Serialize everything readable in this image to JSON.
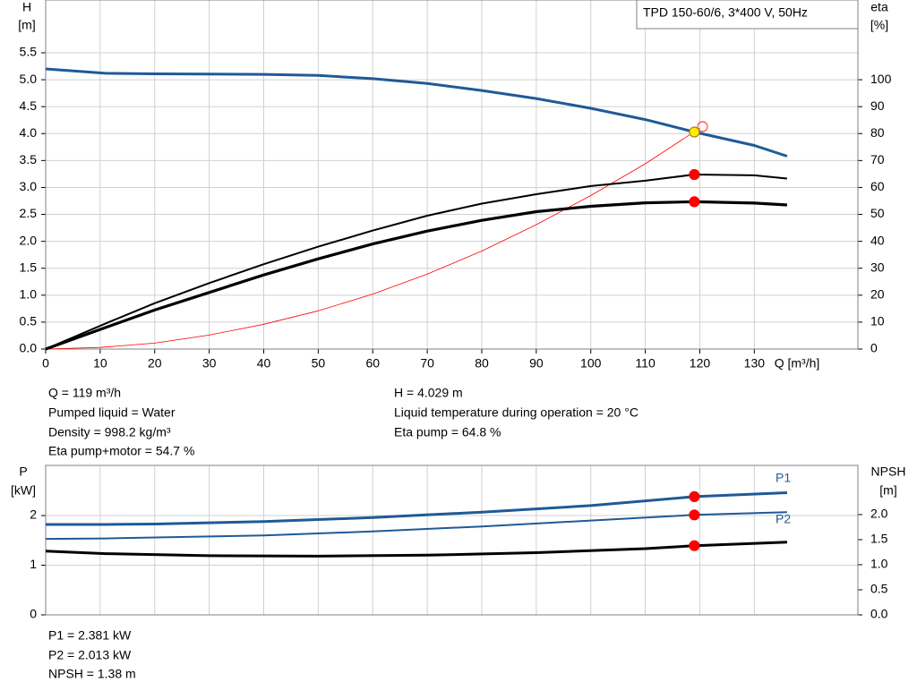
{
  "chart_data": [
    {
      "type": "line",
      "legend_text": "TPD 150-60/6, 3*400 V, 50Hz",
      "y_label": "H",
      "y_unit": "[m]",
      "y2_label": "eta",
      "y2_unit": "[%]",
      "x_label": "Q [m³/h]",
      "xlim": [
        0,
        149
      ],
      "xticks": [
        0,
        10,
        20,
        30,
        40,
        50,
        60,
        70,
        80,
        90,
        100,
        110,
        120,
        130
      ],
      "ylim": [
        0,
        6.48
      ],
      "yticks": [
        {
          "value": 0,
          "label": "0.0"
        },
        0.5,
        {
          "value": 1,
          "label": "1.0"
        },
        1.5,
        {
          "value": 2,
          "label": "2.0"
        },
        2.5,
        {
          "value": 3,
          "label": "3.0"
        },
        3.5,
        {
          "value": 4,
          "label": "4.0"
        },
        4.5,
        {
          "value": 5,
          "label": "5.0"
        },
        5.5
      ],
      "y2lim": [
        0,
        129.6
      ],
      "y2ticks": [
        0,
        10,
        20,
        30,
        40,
        50,
        60,
        70,
        80,
        90,
        100
      ],
      "grid": true,
      "series": [
        {
          "color": "#ff0000",
          "width": 0.8,
          "axis": "y",
          "x": [
            0,
            10,
            20,
            30,
            40,
            50,
            60,
            70,
            80,
            90,
            100,
            110,
            120
          ],
          "values": [
            0,
            0.03,
            0.11,
            0.26,
            0.46,
            0.71,
            1.02,
            1.39,
            1.82,
            2.31,
            2.85,
            3.44,
            4.1
          ]
        },
        {
          "color": "#1f5a96",
          "width": 3,
          "axis": "y",
          "x": [
            0,
            11,
            20,
            40,
            50,
            60,
            70,
            80,
            90,
            100,
            110,
            119,
            130,
            136
          ],
          "values": [
            5.2,
            5.12,
            5.11,
            5.1,
            5.08,
            5.02,
            4.93,
            4.8,
            4.65,
            4.47,
            4.26,
            4.03,
            3.78,
            3.58
          ]
        },
        {
          "color": "#000000",
          "width": 2,
          "axis": "y2",
          "x": [
            0,
            11,
            20,
            30,
            40,
            50,
            60,
            70,
            80,
            90,
            100,
            110,
            119,
            130,
            136
          ],
          "values": [
            0,
            9.5,
            17,
            24.5,
            31.5,
            38,
            44,
            49.5,
            54,
            57.5,
            60.5,
            62.5,
            64.8,
            64.5,
            63.3
          ]
        },
        {
          "color": "#000000",
          "width": 3.2,
          "axis": "y2",
          "x": [
            0,
            11,
            20,
            30,
            40,
            50,
            60,
            70,
            80,
            90,
            100,
            110,
            119,
            130,
            136
          ],
          "values": [
            0,
            8,
            14.5,
            21,
            27.5,
            33.5,
            39,
            43.8,
            47.8,
            51,
            53,
            54.3,
            54.7,
            54.2,
            53.5
          ]
        }
      ],
      "markers": [
        {
          "x": 120.5,
          "y": 4.13,
          "axis": "y",
          "color": "#ff0000",
          "hollow": true
        },
        {
          "x": 119,
          "y": 4.029,
          "axis": "y",
          "color": "#ffee00"
        },
        {
          "x": 119,
          "y": 64.8,
          "axis": "y2",
          "color": "#ff0000"
        },
        {
          "x": 119,
          "y": 54.7,
          "axis": "y2",
          "color": "#ff0000"
        }
      ],
      "annotations": [
        "Q = 119 m³/h",
        "Pumped liquid = Water",
        "Density = 998.2 kg/m³",
        "Eta pump+motor = 54.7 %",
        "H = 4.029 m",
        "Liquid temperature during operation = 20 °C",
        "Eta pump = 64.8 %"
      ]
    },
    {
      "type": "line",
      "y_label": "P",
      "y_unit": "[kW]",
      "y2_label": "NPSH",
      "y2_unit": "[m]",
      "xlim": [
        0,
        149
      ],
      "xticks": [
        0,
        10,
        20,
        30,
        40,
        50,
        60,
        70,
        80,
        90,
        100,
        110,
        120,
        130
      ],
      "ylim": [
        0,
        3.01
      ],
      "yticks": [
        0,
        1,
        2
      ],
      "y2lim": [
        0,
        2.98
      ],
      "y2ticks": [
        {
          "value": 0,
          "label": "0.0"
        },
        0.5,
        {
          "value": 1,
          "label": "1.0"
        },
        1.5,
        {
          "value": 2,
          "label": "2.0"
        }
      ],
      "grid": true,
      "series": [
        {
          "name": "P1",
          "color": "#1f5a96",
          "width": 3,
          "axis": "y",
          "x": [
            0,
            11,
            20,
            40,
            60,
            80,
            100,
            119,
            136
          ],
          "values": [
            1.82,
            1.82,
            1.83,
            1.88,
            1.96,
            2.07,
            2.2,
            2.381,
            2.46
          ]
        },
        {
          "name": "P2",
          "color": "#1f5a96",
          "width": 2,
          "axis": "y",
          "x": [
            0,
            11,
            40,
            60,
            80,
            100,
            119,
            136
          ],
          "values": [
            1.53,
            1.54,
            1.6,
            1.68,
            1.78,
            1.9,
            2.013,
            2.07
          ]
        },
        {
          "color": "#000000",
          "width": 3,
          "axis": "y2",
          "x": [
            0,
            11,
            30,
            50,
            70,
            90,
            110,
            119,
            136
          ],
          "values": [
            1.27,
            1.22,
            1.18,
            1.17,
            1.19,
            1.24,
            1.32,
            1.38,
            1.45
          ]
        }
      ],
      "markers": [
        {
          "x": 119,
          "y": 2.381,
          "axis": "y",
          "color": "#ff0000"
        },
        {
          "x": 119,
          "y": 2.013,
          "axis": "y",
          "color": "#ff0000"
        },
        {
          "x": 119,
          "y": 1.38,
          "axis": "y2",
          "color": "#ff0000"
        }
      ],
      "annotations": [
        "P1 = 2.381 kW",
        "P2 = 2.013 kW",
        "NPSH = 1.38 m"
      ]
    }
  ]
}
